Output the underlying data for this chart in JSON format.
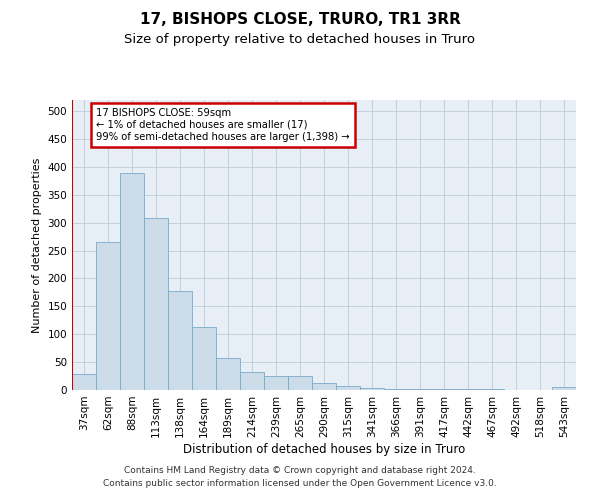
{
  "title": "17, BISHOPS CLOSE, TRURO, TR1 3RR",
  "subtitle": "Size of property relative to detached houses in Truro",
  "xlabel": "Distribution of detached houses by size in Truro",
  "ylabel": "Number of detached properties",
  "bar_color": "#ccdce8",
  "bar_edge_color": "#7aaac8",
  "background_color": "#e8eef5",
  "annotation_text": "17 BISHOPS CLOSE: 59sqm\n← 1% of detached houses are smaller (17)\n99% of semi-detached houses are larger (1,398) →",
  "annotation_box_color": "#ffffff",
  "annotation_border_color": "#cc0000",
  "vline_color": "#cc0000",
  "categories": [
    "37sqm",
    "62sqm",
    "88sqm",
    "113sqm",
    "138sqm",
    "164sqm",
    "189sqm",
    "214sqm",
    "239sqm",
    "265sqm",
    "290sqm",
    "315sqm",
    "341sqm",
    "366sqm",
    "391sqm",
    "417sqm",
    "442sqm",
    "467sqm",
    "492sqm",
    "518sqm",
    "543sqm"
  ],
  "values": [
    28,
    265,
    390,
    308,
    178,
    113,
    57,
    33,
    25,
    25,
    13,
    7,
    4,
    2,
    2,
    1,
    1,
    1,
    0,
    0,
    5
  ],
  "ylim": [
    0,
    520
  ],
  "yticks": [
    0,
    50,
    100,
    150,
    200,
    250,
    300,
    350,
    400,
    450,
    500
  ],
  "footer_line1": "Contains HM Land Registry data © Crown copyright and database right 2024.",
  "footer_line2": "Contains public sector information licensed under the Open Government Licence v3.0.",
  "grid_color": "#bbccd8",
  "title_fontsize": 11,
  "subtitle_fontsize": 9.5,
  "axis_label_fontsize": 8,
  "tick_fontsize": 7.5,
  "footer_fontsize": 6.5
}
